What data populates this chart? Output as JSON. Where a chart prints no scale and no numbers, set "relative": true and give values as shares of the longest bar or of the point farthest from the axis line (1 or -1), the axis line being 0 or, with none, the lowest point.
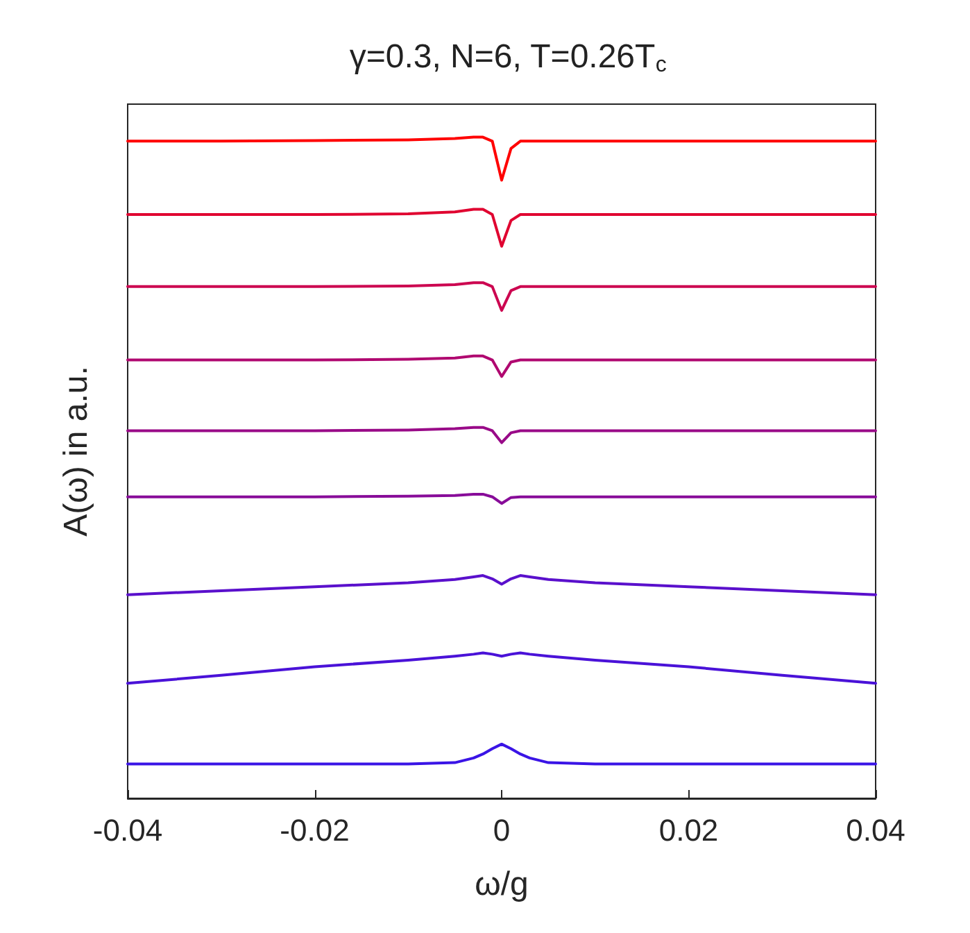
{
  "chart_data": {
    "type": "line",
    "title": "γ=0.3, N=6, T=0.26T$_{c}$",
    "xlabel": "ω/g",
    "ylabel": "A(ω) in a.u.",
    "relative": true,
    "marker": "none",
    "line_style": "solid",
    "grid": false,
    "x": [
      -0.04,
      -0.03,
      -0.02,
      -0.01,
      -0.005,
      -0.003,
      -0.002,
      -0.001,
      0,
      0.001,
      0.002,
      0.003,
      0.005,
      0.01,
      0.02,
      0.03,
      0.04
    ],
    "xlim": [
      -0.04,
      0.04
    ],
    "xticks": [
      -0.04,
      -0.02,
      0,
      0.02,
      0.04
    ],
    "series": [
      {
        "color": "#ff0000",
        "values": [
          0.994,
          0.994,
          0.995,
          0.996,
          0.998,
          1.0,
          1.0,
          0.994,
          0.935,
          0.983,
          0.994,
          0.994,
          0.994,
          0.994,
          0.994,
          0.994,
          0.994
        ]
      },
      {
        "color": "#e00330",
        "values": [
          0.883,
          0.883,
          0.883,
          0.884,
          0.887,
          0.891,
          0.891,
          0.883,
          0.835,
          0.874,
          0.883,
          0.883,
          0.883,
          0.883,
          0.883,
          0.883,
          0.883
        ]
      },
      {
        "color": "#cc0550",
        "values": [
          0.774,
          0.774,
          0.774,
          0.775,
          0.777,
          0.78,
          0.78,
          0.774,
          0.738,
          0.768,
          0.774,
          0.774,
          0.774,
          0.774,
          0.774,
          0.774,
          0.774
        ]
      },
      {
        "color": "#b00870",
        "values": [
          0.663,
          0.663,
          0.663,
          0.664,
          0.666,
          0.669,
          0.669,
          0.663,
          0.638,
          0.66,
          0.663,
          0.663,
          0.663,
          0.663,
          0.663,
          0.663,
          0.663
        ]
      },
      {
        "color": "#990a88",
        "values": [
          0.556,
          0.556,
          0.556,
          0.557,
          0.559,
          0.561,
          0.561,
          0.556,
          0.538,
          0.553,
          0.556,
          0.556,
          0.556,
          0.556,
          0.556,
          0.556,
          0.556
        ]
      },
      {
        "color": "#880c99",
        "values": [
          0.456,
          0.456,
          0.456,
          0.457,
          0.458,
          0.46,
          0.46,
          0.456,
          0.446,
          0.455,
          0.456,
          0.456,
          0.456,
          0.456,
          0.456,
          0.456,
          0.456
        ]
      },
      {
        "color": "#5a10cc",
        "values": [
          0.308,
          0.314,
          0.32,
          0.326,
          0.331,
          0.335,
          0.337,
          0.332,
          0.324,
          0.332,
          0.337,
          0.335,
          0.331,
          0.326,
          0.32,
          0.314,
          0.308
        ]
      },
      {
        "color": "#4a12d8",
        "values": [
          0.174,
          0.186,
          0.199,
          0.209,
          0.215,
          0.218,
          0.22,
          0.218,
          0.215,
          0.218,
          0.22,
          0.218,
          0.215,
          0.209,
          0.199,
          0.186,
          0.174
        ]
      },
      {
        "color": "#3a14e6",
        "values": [
          0.052,
          0.052,
          0.052,
          0.052,
          0.054,
          0.061,
          0.067,
          0.075,
          0.082,
          0.075,
          0.067,
          0.061,
          0.054,
          0.052,
          0.052,
          0.052,
          0.052
        ]
      }
    ]
  }
}
